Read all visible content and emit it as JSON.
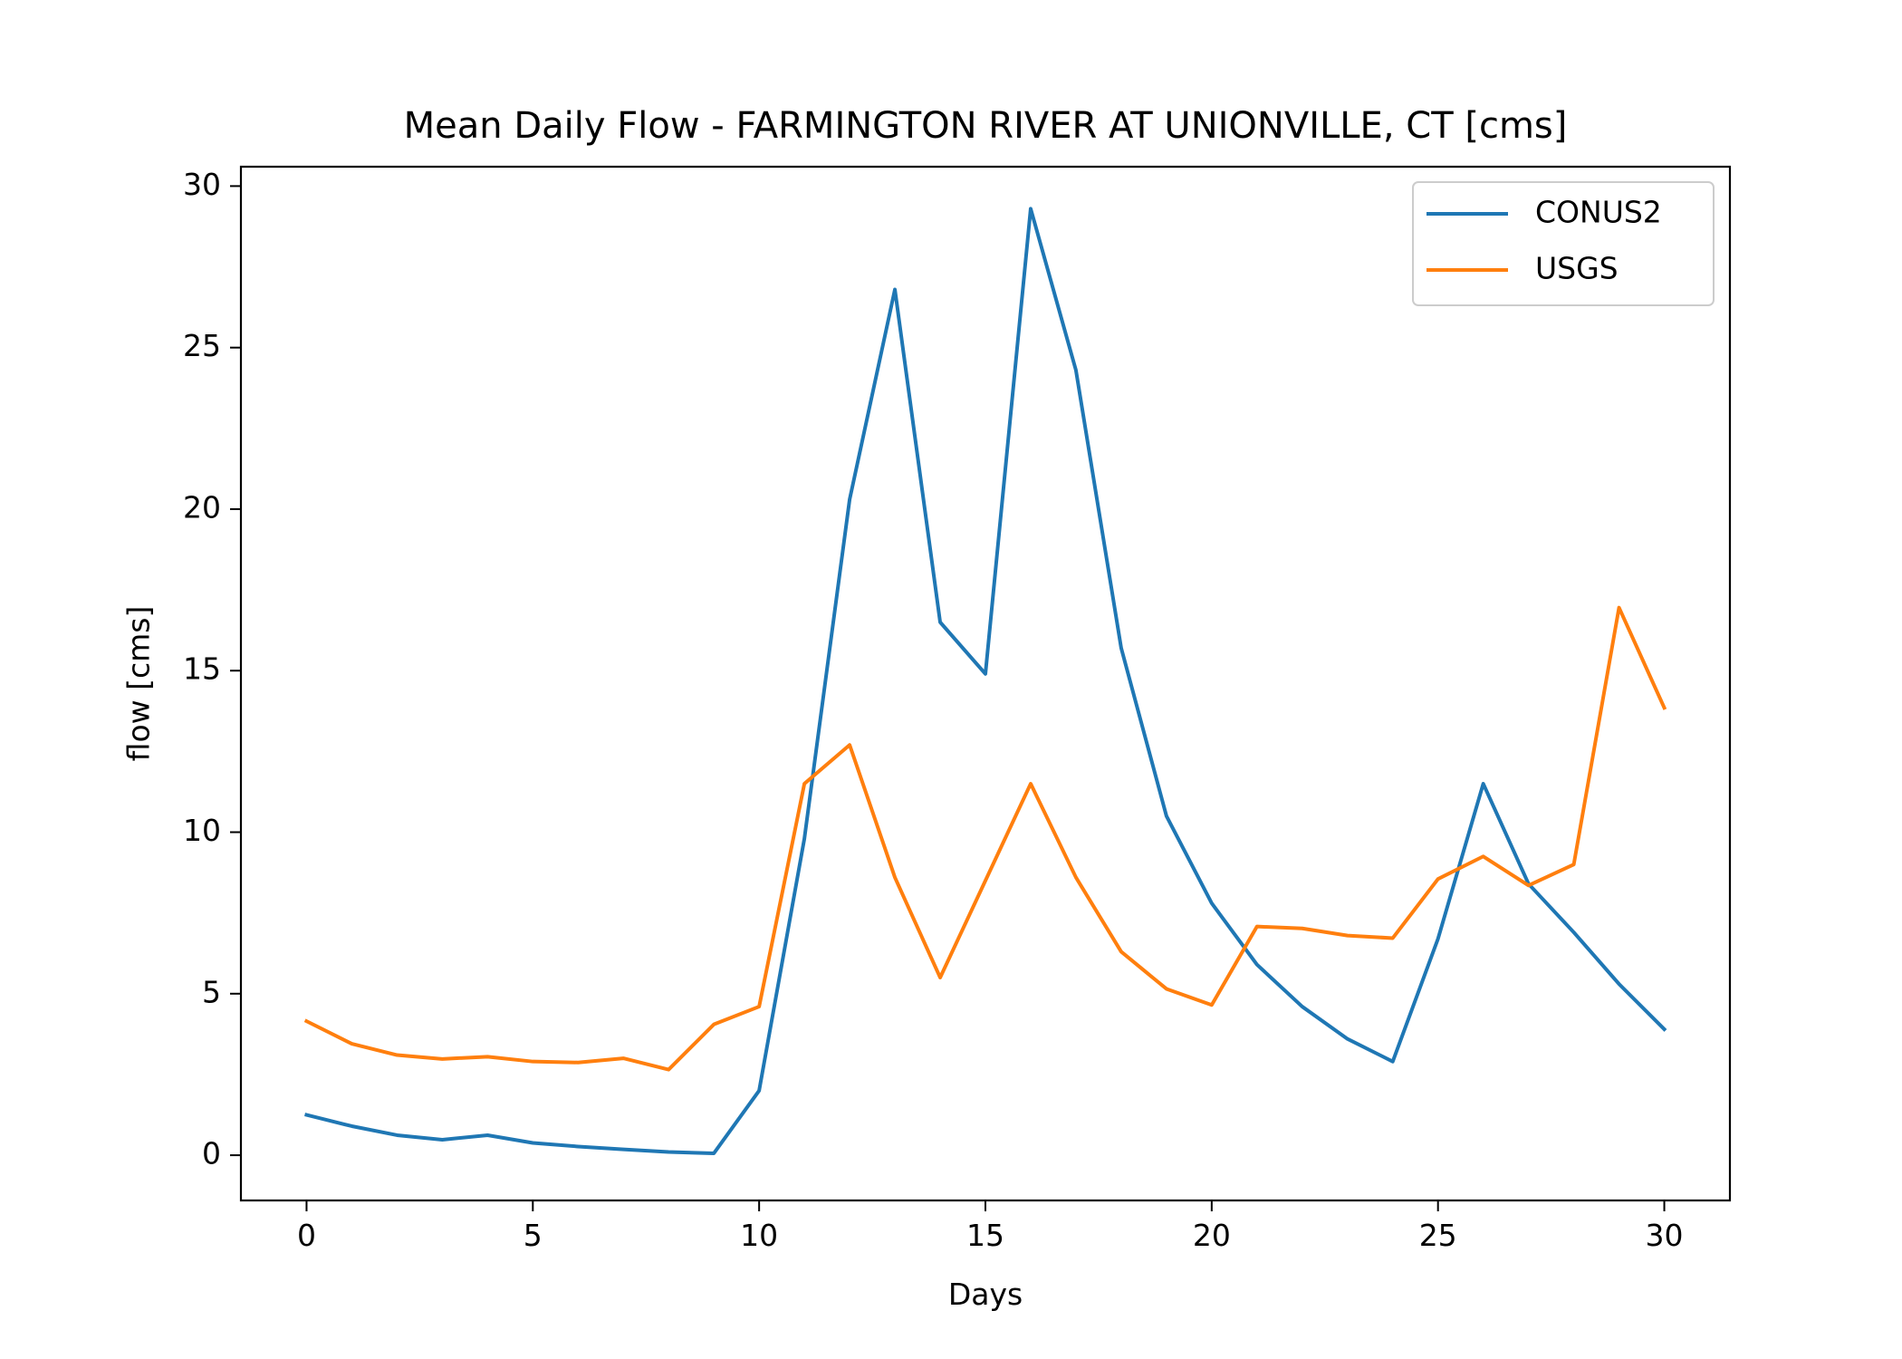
{
  "chart_data": {
    "type": "line",
    "title": "Mean Daily Flow - FARMINGTON RIVER AT UNIONVILLE, CT [cms]",
    "xlabel": "Days",
    "ylabel": "flow [cms]",
    "xlim": [
      -1.45,
      31.45
    ],
    "ylim": [
      -1.4,
      30.6
    ],
    "xticks": [
      0,
      5,
      10,
      15,
      20,
      25,
      30
    ],
    "yticks": [
      0,
      5,
      10,
      15,
      20,
      25,
      30
    ],
    "grid": false,
    "legend_position": "top-right",
    "x": [
      0,
      1,
      2,
      3,
      4,
      5,
      6,
      7,
      8,
      9,
      10,
      11,
      12,
      13,
      14,
      15,
      16,
      17,
      18,
      19,
      20,
      21,
      22,
      23,
      24,
      25,
      26,
      27,
      28,
      29,
      30
    ],
    "series": [
      {
        "name": "CONUS2",
        "color": "#1f77b4",
        "values": [
          1.25,
          0.9,
          0.62,
          0.48,
          0.62,
          0.38,
          0.27,
          0.18,
          0.1,
          0.06,
          2.0,
          9.8,
          20.3,
          26.8,
          16.5,
          14.9,
          29.3,
          24.3,
          15.7,
          10.5,
          7.8,
          5.9,
          4.6,
          3.6,
          2.9,
          6.7,
          11.5,
          8.4,
          6.9,
          5.3,
          3.9
        ]
      },
      {
        "name": "USGS",
        "color": "#ff7f0e",
        "values": [
          4.15,
          3.45,
          3.1,
          2.98,
          3.05,
          2.9,
          2.87,
          3.0,
          2.65,
          4.05,
          4.6,
          11.5,
          12.7,
          8.6,
          5.5,
          8.5,
          11.5,
          8.6,
          6.3,
          5.15,
          4.65,
          7.08,
          7.02,
          6.8,
          6.72,
          8.55,
          9.25,
          8.35,
          9.0,
          16.95,
          13.85
        ]
      }
    ]
  }
}
